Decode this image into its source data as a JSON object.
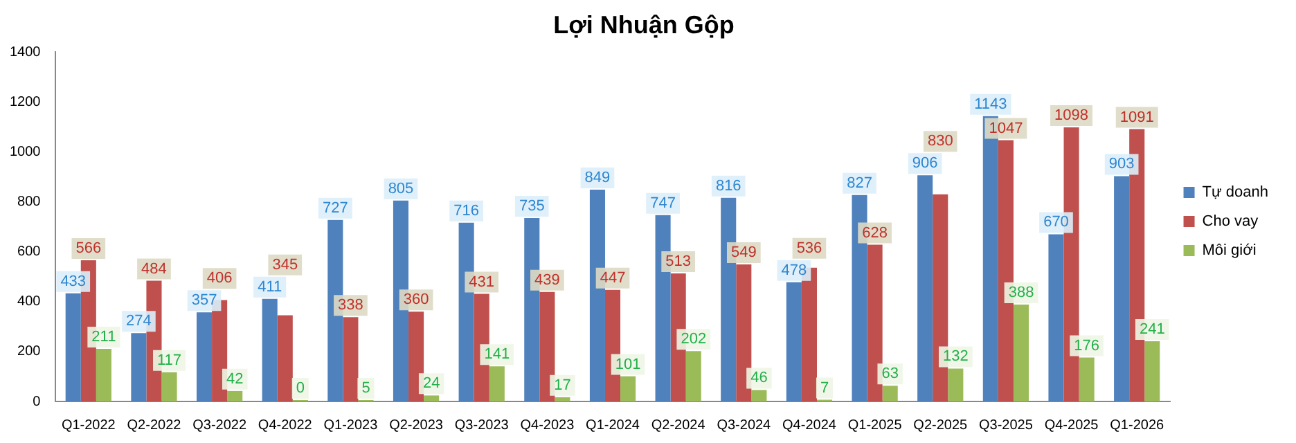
{
  "chart_data": {
    "type": "bar",
    "title": "Lợi Nhuận Gộp",
    "categories": [
      "Q1-2022",
      "Q2-2022",
      "Q3-2022",
      "Q4-2022",
      "Q1-2023",
      "Q2-2023",
      "Q3-2023",
      "Q4-2023",
      "Q1-2024",
      "Q2-2024",
      "Q3-2024",
      "Q4-2024",
      "Q1-2025",
      "Q2-2025",
      "Q3-2025",
      "Q4-2025",
      "Q1-2026"
    ],
    "series": [
      {
        "name": "Tự doanh",
        "color": "#4f81bd",
        "values": [
          433,
          274,
          357,
          411,
          727,
          805,
          716,
          735,
          849,
          747,
          816,
          478,
          827,
          906,
          1143,
          670,
          903
        ]
      },
      {
        "name": "Cho vay",
        "color": "#c0504d",
        "values": [
          566,
          484,
          406,
          345,
          338,
          360,
          431,
          439,
          447,
          513,
          549,
          536,
          628,
          830,
          1047,
          1098,
          1091
        ]
      },
      {
        "name": "Môi giới",
        "color": "#9bbb59",
        "values": [
          211,
          117,
          42,
          0,
          5,
          24,
          141,
          17,
          101,
          202,
          46,
          7,
          63,
          132,
          388,
          176,
          241
        ]
      }
    ],
    "ylim": [
      0,
      1400
    ],
    "yticks": [
      0,
      200,
      400,
      600,
      800,
      1000,
      1200,
      1400
    ],
    "grid": false,
    "legend": "right",
    "data_labels": true
  }
}
